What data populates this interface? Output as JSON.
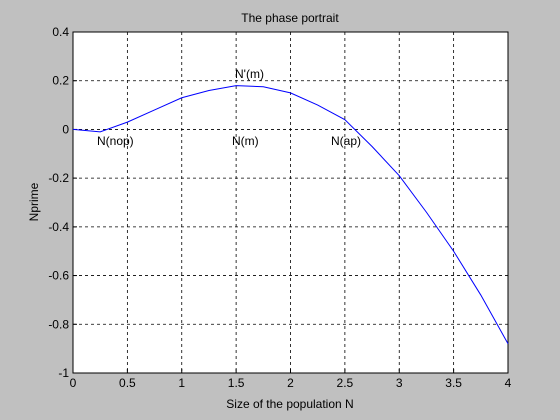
{
  "chart_data": {
    "type": "line",
    "title": "The phase portrait",
    "x_label": "Size of the population N",
    "y_label": "Nprime",
    "x": [
      0,
      0.25,
      0.5,
      0.75,
      1,
      1.25,
      1.5,
      1.75,
      2,
      2.25,
      2.5,
      2.75,
      3,
      3.25,
      3.5,
      3.75,
      4
    ],
    "series": [
      {
        "color": "#0000ff",
        "values": [
          0,
          -0.01,
          0.03,
          0.08,
          0.13,
          0.16,
          0.18,
          0.175,
          0.15,
          0.1,
          0.04,
          -0.07,
          -0.19,
          -0.34,
          -0.5,
          -0.68,
          -0.88
        ]
      }
    ],
    "xlim": [
      0,
      4
    ],
    "xticks": [
      0,
      0.5,
      1,
      1.5,
      2,
      2.5,
      3,
      3.5,
      4
    ],
    "ylim": [
      -1,
      0.4
    ],
    "yticks": [
      -1,
      -0.8,
      -0.6,
      -0.4,
      -0.2,
      0,
      0.2,
      0.4
    ],
    "grid": true,
    "annotations": [
      "N'(m)",
      "N(nop)",
      "N(m)",
      "N(ap)"
    ]
  }
}
